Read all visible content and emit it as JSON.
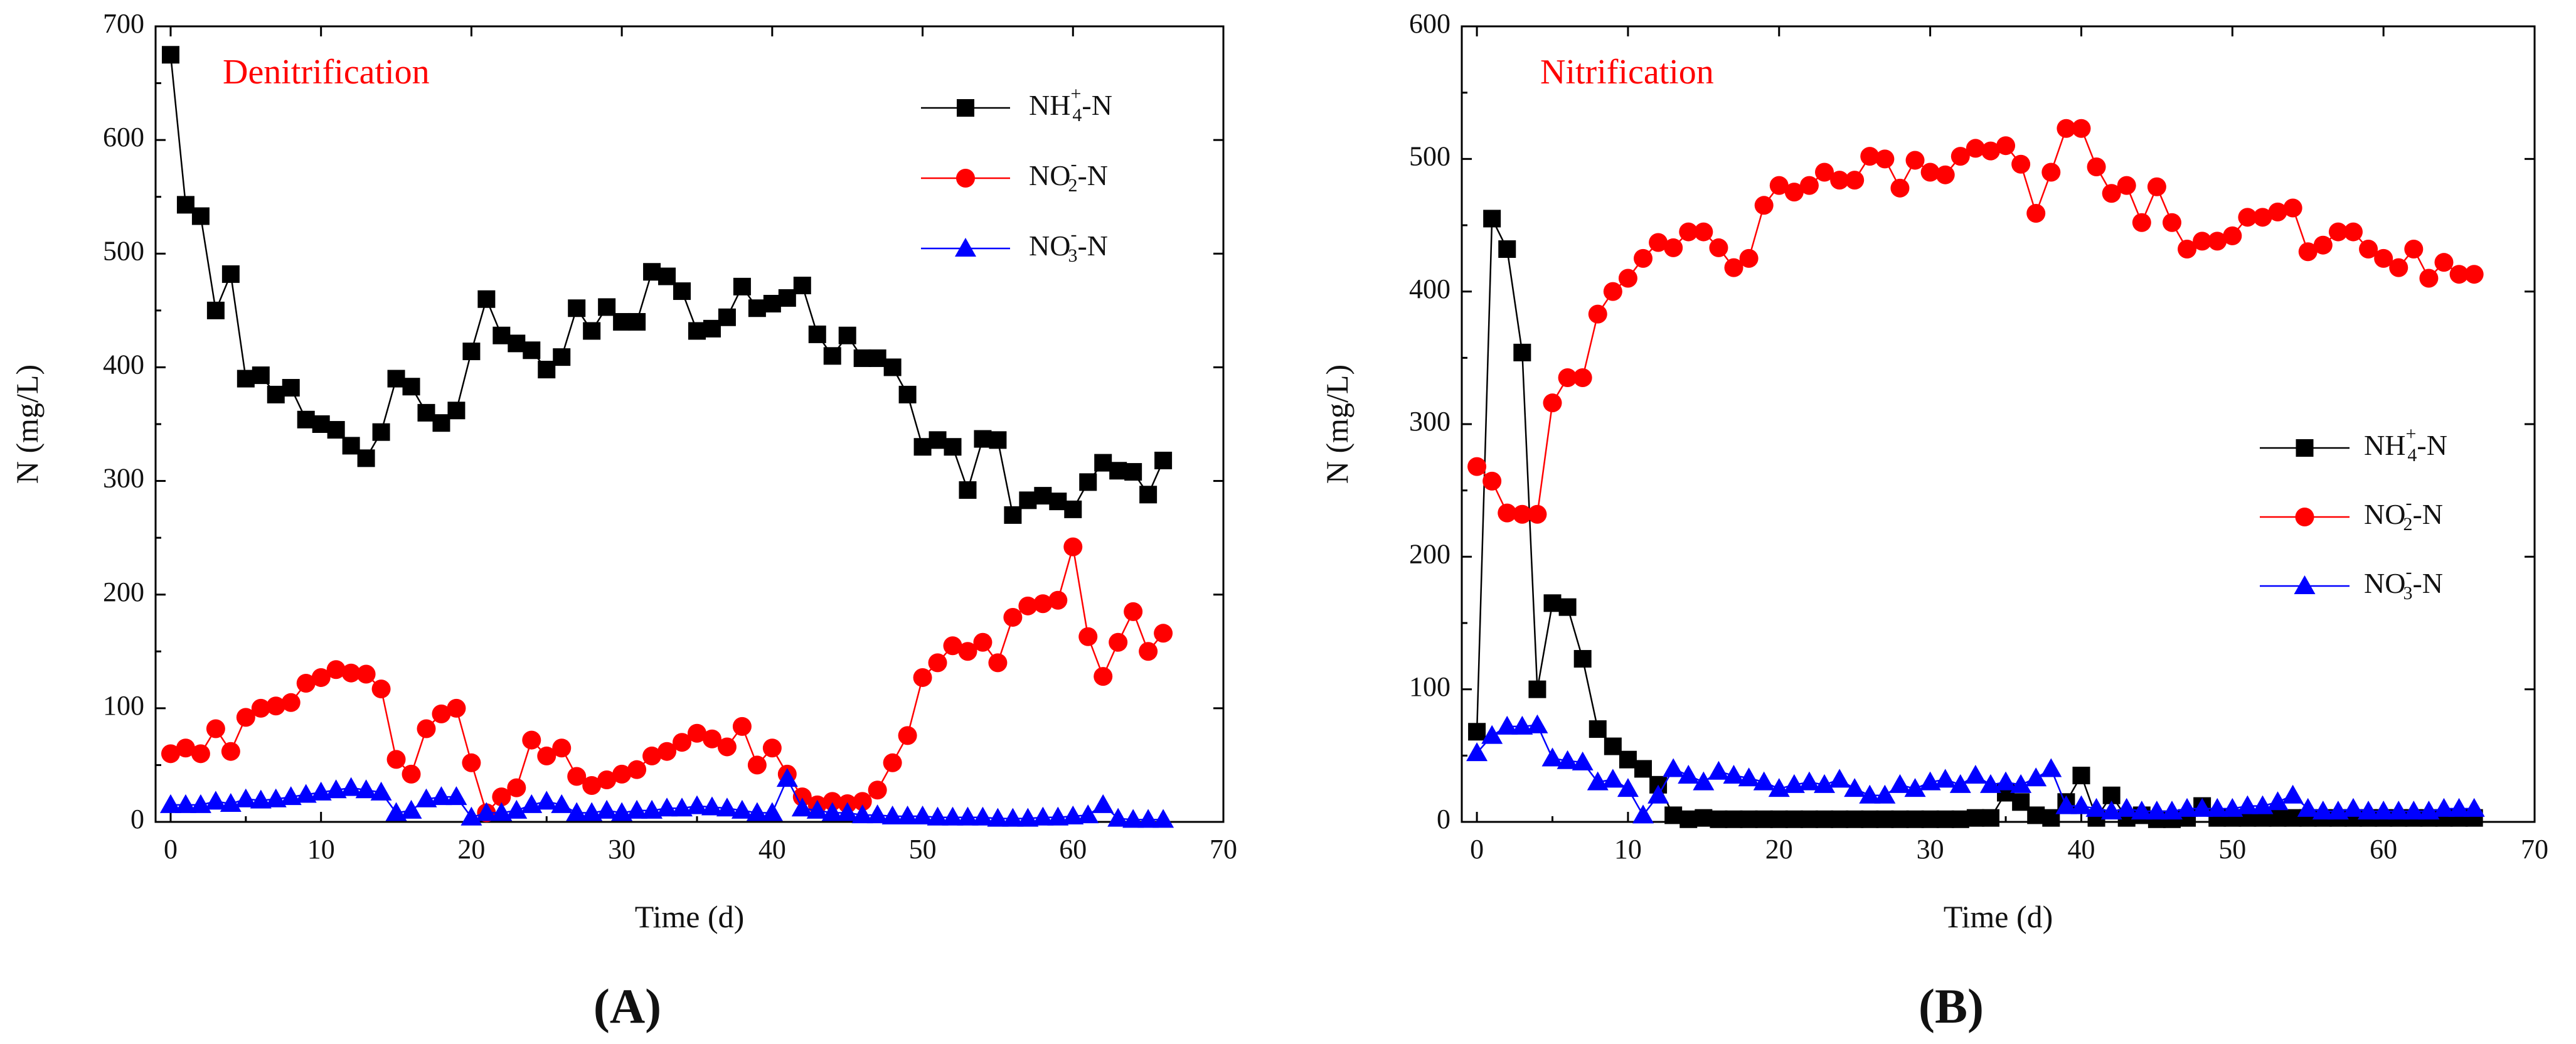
{
  "chart_data": [
    {
      "type": "scatter",
      "panel_label": "(A)",
      "title": "Denitrification",
      "xlabel": "Time (d)",
      "ylabel": "N (mg/L)",
      "xlim": [
        -1,
        70
      ],
      "ylim": [
        0,
        700
      ],
      "xticks": [
        "0",
        "10",
        "20",
        "30",
        "40",
        "50",
        "60",
        "70"
      ],
      "yticks": [
        "0",
        "100",
        "200",
        "300",
        "400",
        "500",
        "600",
        "700"
      ],
      "legend_position": "top-right",
      "series": [
        {
          "name": "NH4+-N",
          "legend": {
            "base": "NH",
            "sub": "4",
            "sup": "+",
            "rest": "-N"
          },
          "color": "#000000",
          "marker": "square",
          "x": [
            0,
            1,
            2,
            3,
            4,
            5,
            6,
            7,
            8,
            9,
            10,
            11,
            12,
            13,
            14,
            15,
            16,
            17,
            18,
            19,
            20,
            21,
            22,
            23,
            24,
            25,
            26,
            27,
            28,
            29,
            30,
            31,
            32,
            33,
            34,
            35,
            36,
            37,
            38,
            39,
            40,
            41,
            42,
            43,
            44,
            45,
            46,
            47,
            48,
            49,
            50,
            51,
            52,
            53,
            54,
            55,
            56,
            57,
            58,
            59,
            60,
            61,
            62,
            63,
            64,
            65,
            66
          ],
          "y": [
            675,
            543,
            533,
            450,
            482,
            390,
            393,
            376,
            382,
            354,
            350,
            345,
            331,
            320,
            343,
            390,
            383,
            360,
            351,
            362,
            414,
            460,
            428,
            421,
            415,
            398,
            409,
            452,
            432,
            453,
            440,
            440,
            484,
            480,
            467,
            432,
            434,
            444,
            471,
            452,
            456,
            461,
            472,
            429,
            410,
            428,
            408,
            408,
            400,
            376,
            330,
            336,
            330,
            292,
            337,
            336,
            270,
            283,
            287,
            282,
            275,
            299,
            316,
            309,
            308,
            288,
            318
          ]
        },
        {
          "name": "NO2--N",
          "legend": {
            "base": "NO",
            "sub": "2",
            "sup": "-",
            "rest": "-N"
          },
          "color": "#ff0000",
          "marker": "circle",
          "x": [
            0,
            1,
            2,
            3,
            4,
            5,
            6,
            7,
            8,
            9,
            10,
            11,
            12,
            13,
            14,
            15,
            16,
            17,
            18,
            19,
            20,
            21,
            22,
            23,
            24,
            25,
            26,
            27,
            28,
            29,
            30,
            31,
            32,
            33,
            34,
            35,
            36,
            37,
            38,
            39,
            40,
            41,
            42,
            43,
            44,
            45,
            46,
            47,
            48,
            49,
            50,
            51,
            52,
            53,
            54,
            55,
            56,
            57,
            58,
            59,
            60,
            61,
            62,
            63,
            64,
            65,
            66
          ],
          "y": [
            60,
            65,
            60,
            82,
            62,
            92,
            100,
            102,
            105,
            122,
            127,
            134,
            131,
            130,
            117,
            55,
            42,
            82,
            95,
            100,
            52,
            8,
            22,
            30,
            72,
            58,
            65,
            40,
            32,
            37,
            42,
            46,
            58,
            62,
            70,
            78,
            73,
            66,
            84,
            50,
            65,
            42,
            22,
            15,
            18,
            16,
            18,
            28,
            52,
            76,
            127,
            140,
            155,
            150,
            158,
            140,
            180,
            190,
            192,
            195,
            242,
            163,
            128,
            158,
            185,
            150,
            166
          ]
        },
        {
          "name": "NO3--N",
          "legend": {
            "base": "NO",
            "sub": "3",
            "sup": "-",
            "rest": "-N"
          },
          "color": "#0000ff",
          "marker": "triangle",
          "x": [
            0,
            1,
            2,
            3,
            4,
            5,
            6,
            7,
            8,
            9,
            10,
            11,
            12,
            13,
            14,
            15,
            16,
            17,
            18,
            19,
            20,
            21,
            22,
            23,
            24,
            25,
            26,
            27,
            28,
            29,
            30,
            31,
            32,
            33,
            34,
            35,
            36,
            37,
            38,
            39,
            40,
            41,
            42,
            43,
            44,
            45,
            46,
            47,
            48,
            49,
            50,
            51,
            52,
            53,
            54,
            55,
            56,
            57,
            58,
            59,
            60,
            61,
            62,
            63,
            64,
            65,
            66
          ],
          "y": [
            15,
            15,
            15,
            18,
            16,
            20,
            19,
            20,
            22,
            24,
            26,
            28,
            30,
            28,
            26,
            8,
            10,
            20,
            22,
            22,
            4,
            8,
            8,
            10,
            15,
            18,
            15,
            8,
            8,
            10,
            8,
            10,
            10,
            12,
            12,
            14,
            13,
            12,
            10,
            8,
            8,
            38,
            12,
            10,
            8,
            8,
            6,
            6,
            5,
            5,
            5,
            4,
            4,
            4,
            4,
            3,
            3,
            3,
            4,
            4,
            5,
            6,
            15,
            3,
            2,
            2,
            2
          ]
        }
      ]
    },
    {
      "type": "scatter",
      "panel_label": "(B)",
      "title": "Nitrification",
      "xlabel": "Time (d)",
      "ylabel": "N (mg/L)",
      "xlim": [
        -1,
        70
      ],
      "ylim": [
        0,
        600
      ],
      "xticks": [
        "0",
        "10",
        "20",
        "30",
        "40",
        "50",
        "60",
        "70"
      ],
      "yticks": [
        "0",
        "100",
        "200",
        "300",
        "400",
        "500",
        "600"
      ],
      "legend_position": "center-right",
      "series": [
        {
          "name": "NH4+-N",
          "legend": {
            "base": "NH",
            "sub": "4",
            "sup": "+",
            "rest": "-N"
          },
          "color": "#000000",
          "marker": "square",
          "x": [
            0,
            1,
            2,
            3,
            4,
            5,
            6,
            7,
            8,
            9,
            10,
            11,
            12,
            13,
            14,
            15,
            16,
            17,
            18,
            19,
            20,
            21,
            22,
            23,
            24,
            25,
            26,
            27,
            28,
            29,
            30,
            31,
            32,
            33,
            34,
            35,
            36,
            37,
            38,
            39,
            40,
            41,
            42,
            43,
            44,
            45,
            46,
            47,
            48,
            49,
            50,
            51,
            52,
            53,
            54,
            55,
            56,
            57,
            58,
            59,
            60,
            61,
            62,
            63,
            64,
            65,
            66
          ],
          "y": [
            68,
            455,
            432,
            354,
            100,
            165,
            162,
            123,
            70,
            57,
            47,
            40,
            28,
            5,
            2,
            3,
            2,
            2,
            2,
            2,
            2,
            2,
            2,
            2,
            2,
            2,
            2,
            2,
            2,
            2,
            2,
            2,
            2,
            3,
            3,
            22,
            15,
            5,
            3,
            15,
            35,
            3,
            20,
            3,
            5,
            2,
            2,
            3,
            12,
            3,
            3,
            3,
            3,
            3,
            3,
            3,
            3,
            3,
            3,
            3,
            3,
            3,
            3,
            3,
            3,
            3,
            3
          ]
        },
        {
          "name": "NO2--N",
          "legend": {
            "base": "NO",
            "sub": "2",
            "sup": "-",
            "rest": "-N"
          },
          "color": "#ff0000",
          "marker": "circle",
          "x": [
            0,
            1,
            2,
            3,
            4,
            5,
            6,
            7,
            8,
            9,
            10,
            11,
            12,
            13,
            14,
            15,
            16,
            17,
            18,
            19,
            20,
            21,
            22,
            23,
            24,
            25,
            26,
            27,
            28,
            29,
            30,
            31,
            32,
            33,
            34,
            35,
            36,
            37,
            38,
            39,
            40,
            41,
            42,
            43,
            44,
            45,
            46,
            47,
            48,
            49,
            50,
            51,
            52,
            53,
            54,
            55,
            56,
            57,
            58,
            59,
            60,
            61,
            62,
            63,
            64,
            65,
            66
          ],
          "y": [
            268,
            257,
            233,
            232,
            232,
            316,
            335,
            335,
            383,
            400,
            410,
            425,
            437,
            433,
            445,
            445,
            433,
            418,
            425,
            465,
            480,
            475,
            480,
            490,
            484,
            484,
            502,
            500,
            478,
            499,
            490,
            488,
            502,
            508,
            506,
            510,
            496,
            459,
            490,
            523,
            523,
            494,
            474,
            480,
            452,
            479,
            452,
            432,
            438,
            438,
            442,
            456,
            456,
            460,
            463,
            430,
            435,
            445,
            445,
            432,
            425,
            418,
            432,
            410,
            422,
            413,
            413
          ]
        },
        {
          "name": "NO3--N",
          "legend": {
            "base": "NO",
            "sub": "3",
            "sup": "-",
            "rest": "-N"
          },
          "color": "#0000ff",
          "marker": "triangle",
          "x": [
            0,
            1,
            2,
            3,
            4,
            5,
            6,
            7,
            8,
            9,
            10,
            11,
            12,
            13,
            14,
            15,
            16,
            17,
            18,
            19,
            20,
            21,
            22,
            23,
            24,
            25,
            26,
            27,
            28,
            29,
            30,
            31,
            32,
            33,
            34,
            35,
            36,
            37,
            38,
            39,
            40,
            41,
            42,
            43,
            44,
            45,
            46,
            47,
            48,
            49,
            50,
            51,
            52,
            53,
            54,
            55,
            56,
            57,
            58,
            59,
            60,
            61,
            62,
            63,
            64,
            65,
            66
          ],
          "y": [
            52,
            65,
            72,
            72,
            73,
            48,
            46,
            45,
            30,
            32,
            25,
            5,
            20,
            40,
            35,
            30,
            38,
            35,
            33,
            30,
            25,
            28,
            30,
            28,
            32,
            25,
            20,
            20,
            28,
            25,
            30,
            32,
            28,
            35,
            28,
            30,
            28,
            33,
            40,
            12,
            12,
            10,
            8,
            10,
            8,
            8,
            8,
            10,
            10,
            10,
            10,
            12,
            12,
            15,
            20,
            10,
            8,
            8,
            10,
            8,
            8,
            8,
            8,
            8,
            10,
            10,
            10
          ]
        }
      ]
    }
  ]
}
